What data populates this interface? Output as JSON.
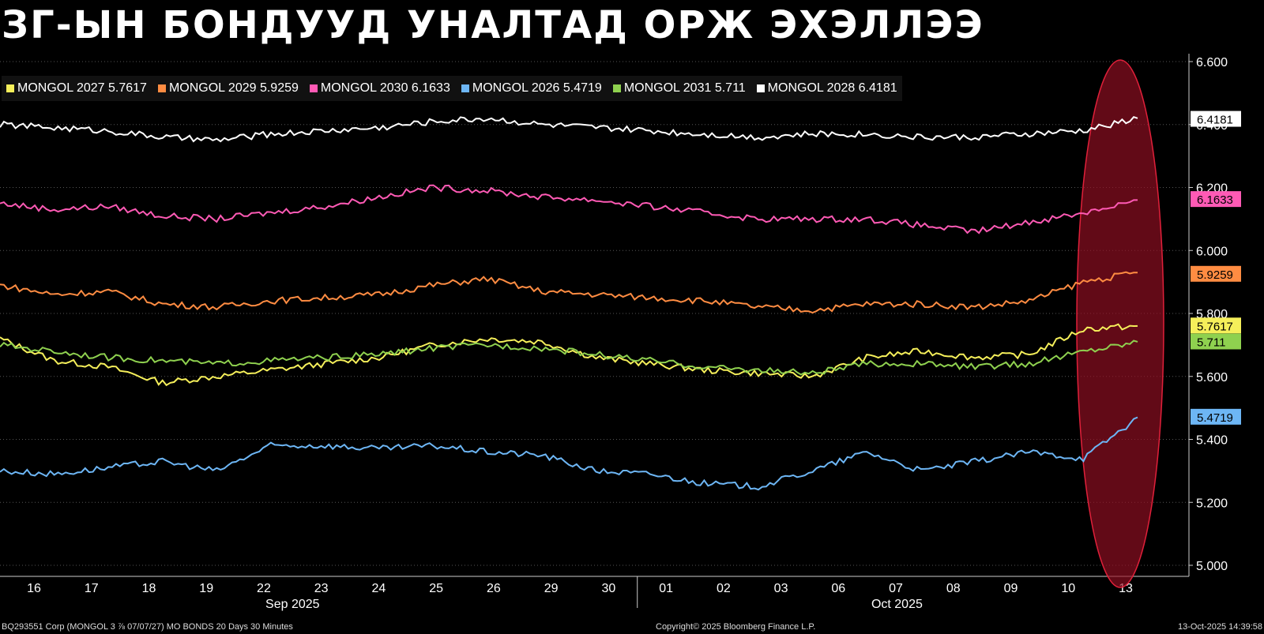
{
  "title": "ЗГ-ЫН БОНДУУД УНАЛТАД ОРЖ ЭХЭЛЛЭЭ",
  "footer": {
    "left": "BQ293551 Corp (MONGOL 3 ⅞ 07/07/27) MO BONDS 20 Days 30 Minutes",
    "middle": "Copyright© 2025 Bloomberg Finance L.P.",
    "right": "13-Oct-2025 14:39:58"
  },
  "chart_data": {
    "type": "line",
    "title": "ЗГ-ЫН БОНДУУД УНАЛТАД ОРЖ ЭХЭЛЛЭЭ",
    "ylim": [
      5.0,
      6.6
    ],
    "yticks": [
      "5.000",
      "5.200",
      "5.400",
      "5.600",
      "5.800",
      "6.000",
      "6.200",
      "6.400",
      "6.600"
    ],
    "x_ticks": [
      "16",
      "17",
      "18",
      "19",
      "22",
      "23",
      "24",
      "25",
      "26",
      "29",
      "30",
      "01",
      "02",
      "03",
      "06",
      "07",
      "08",
      "09",
      "10",
      "13"
    ],
    "month_labels": [
      "Sep 2025",
      "Oct 2025"
    ],
    "grid": true,
    "legend_position": "top-left",
    "series": [
      {
        "name": "MONGOL 2027 5.7617",
        "color": "#f5ef5a",
        "last_label": "5.7617",
        "values": [
          5.72,
          5.65,
          5.63,
          5.58,
          5.6,
          5.62,
          5.64,
          5.66,
          5.7,
          5.72,
          5.71,
          5.66,
          5.64,
          5.62,
          5.61,
          5.6,
          5.66,
          5.68,
          5.66,
          5.67,
          5.75,
          5.76
        ]
      },
      {
        "name": "MONGOL 2029 5.9259",
        "color": "#ff8c42",
        "last_label": "5.9259",
        "values": [
          5.89,
          5.86,
          5.87,
          5.83,
          5.82,
          5.84,
          5.85,
          5.86,
          5.89,
          5.91,
          5.87,
          5.86,
          5.85,
          5.84,
          5.82,
          5.81,
          5.83,
          5.83,
          5.82,
          5.84,
          5.9,
          5.93
        ]
      },
      {
        "name": "MONGOL 2030 6.1633",
        "color": "#ff5ab5",
        "last_label": "6.1633",
        "values": [
          6.15,
          6.13,
          6.14,
          6.11,
          6.1,
          6.12,
          6.14,
          6.17,
          6.2,
          6.19,
          6.17,
          6.16,
          6.14,
          6.12,
          6.1,
          6.1,
          6.1,
          6.08,
          6.06,
          6.09,
          6.12,
          6.16
        ]
      },
      {
        "name": "MONGOL 2026 5.4719",
        "color": "#6db6f5",
        "last_label": "5.4719",
        "values": [
          5.3,
          5.29,
          5.31,
          5.33,
          5.3,
          5.38,
          5.38,
          5.37,
          5.38,
          5.36,
          5.35,
          5.3,
          5.29,
          5.26,
          5.25,
          5.3,
          5.36,
          5.3,
          5.33,
          5.36,
          5.34,
          5.47
        ]
      },
      {
        "name": "MONGOL 2031 5.711",
        "color": "#8fd14f",
        "last_label": "5.711",
        "values": [
          5.7,
          5.68,
          5.66,
          5.65,
          5.64,
          5.65,
          5.66,
          5.67,
          5.69,
          5.7,
          5.69,
          5.67,
          5.65,
          5.63,
          5.62,
          5.61,
          5.64,
          5.64,
          5.63,
          5.64,
          5.68,
          5.71
        ]
      },
      {
        "name": "MONGOL 2028 6.4181",
        "color": "#ffffff",
        "last_label": "6.4181",
        "values": [
          6.4,
          6.39,
          6.38,
          6.36,
          6.35,
          6.37,
          6.38,
          6.39,
          6.41,
          6.42,
          6.4,
          6.39,
          6.38,
          6.37,
          6.36,
          6.37,
          6.37,
          6.36,
          6.36,
          6.37,
          6.38,
          6.42
        ]
      }
    ],
    "highlight": "red ellipse around latest trading day (10–13 Oct)"
  }
}
